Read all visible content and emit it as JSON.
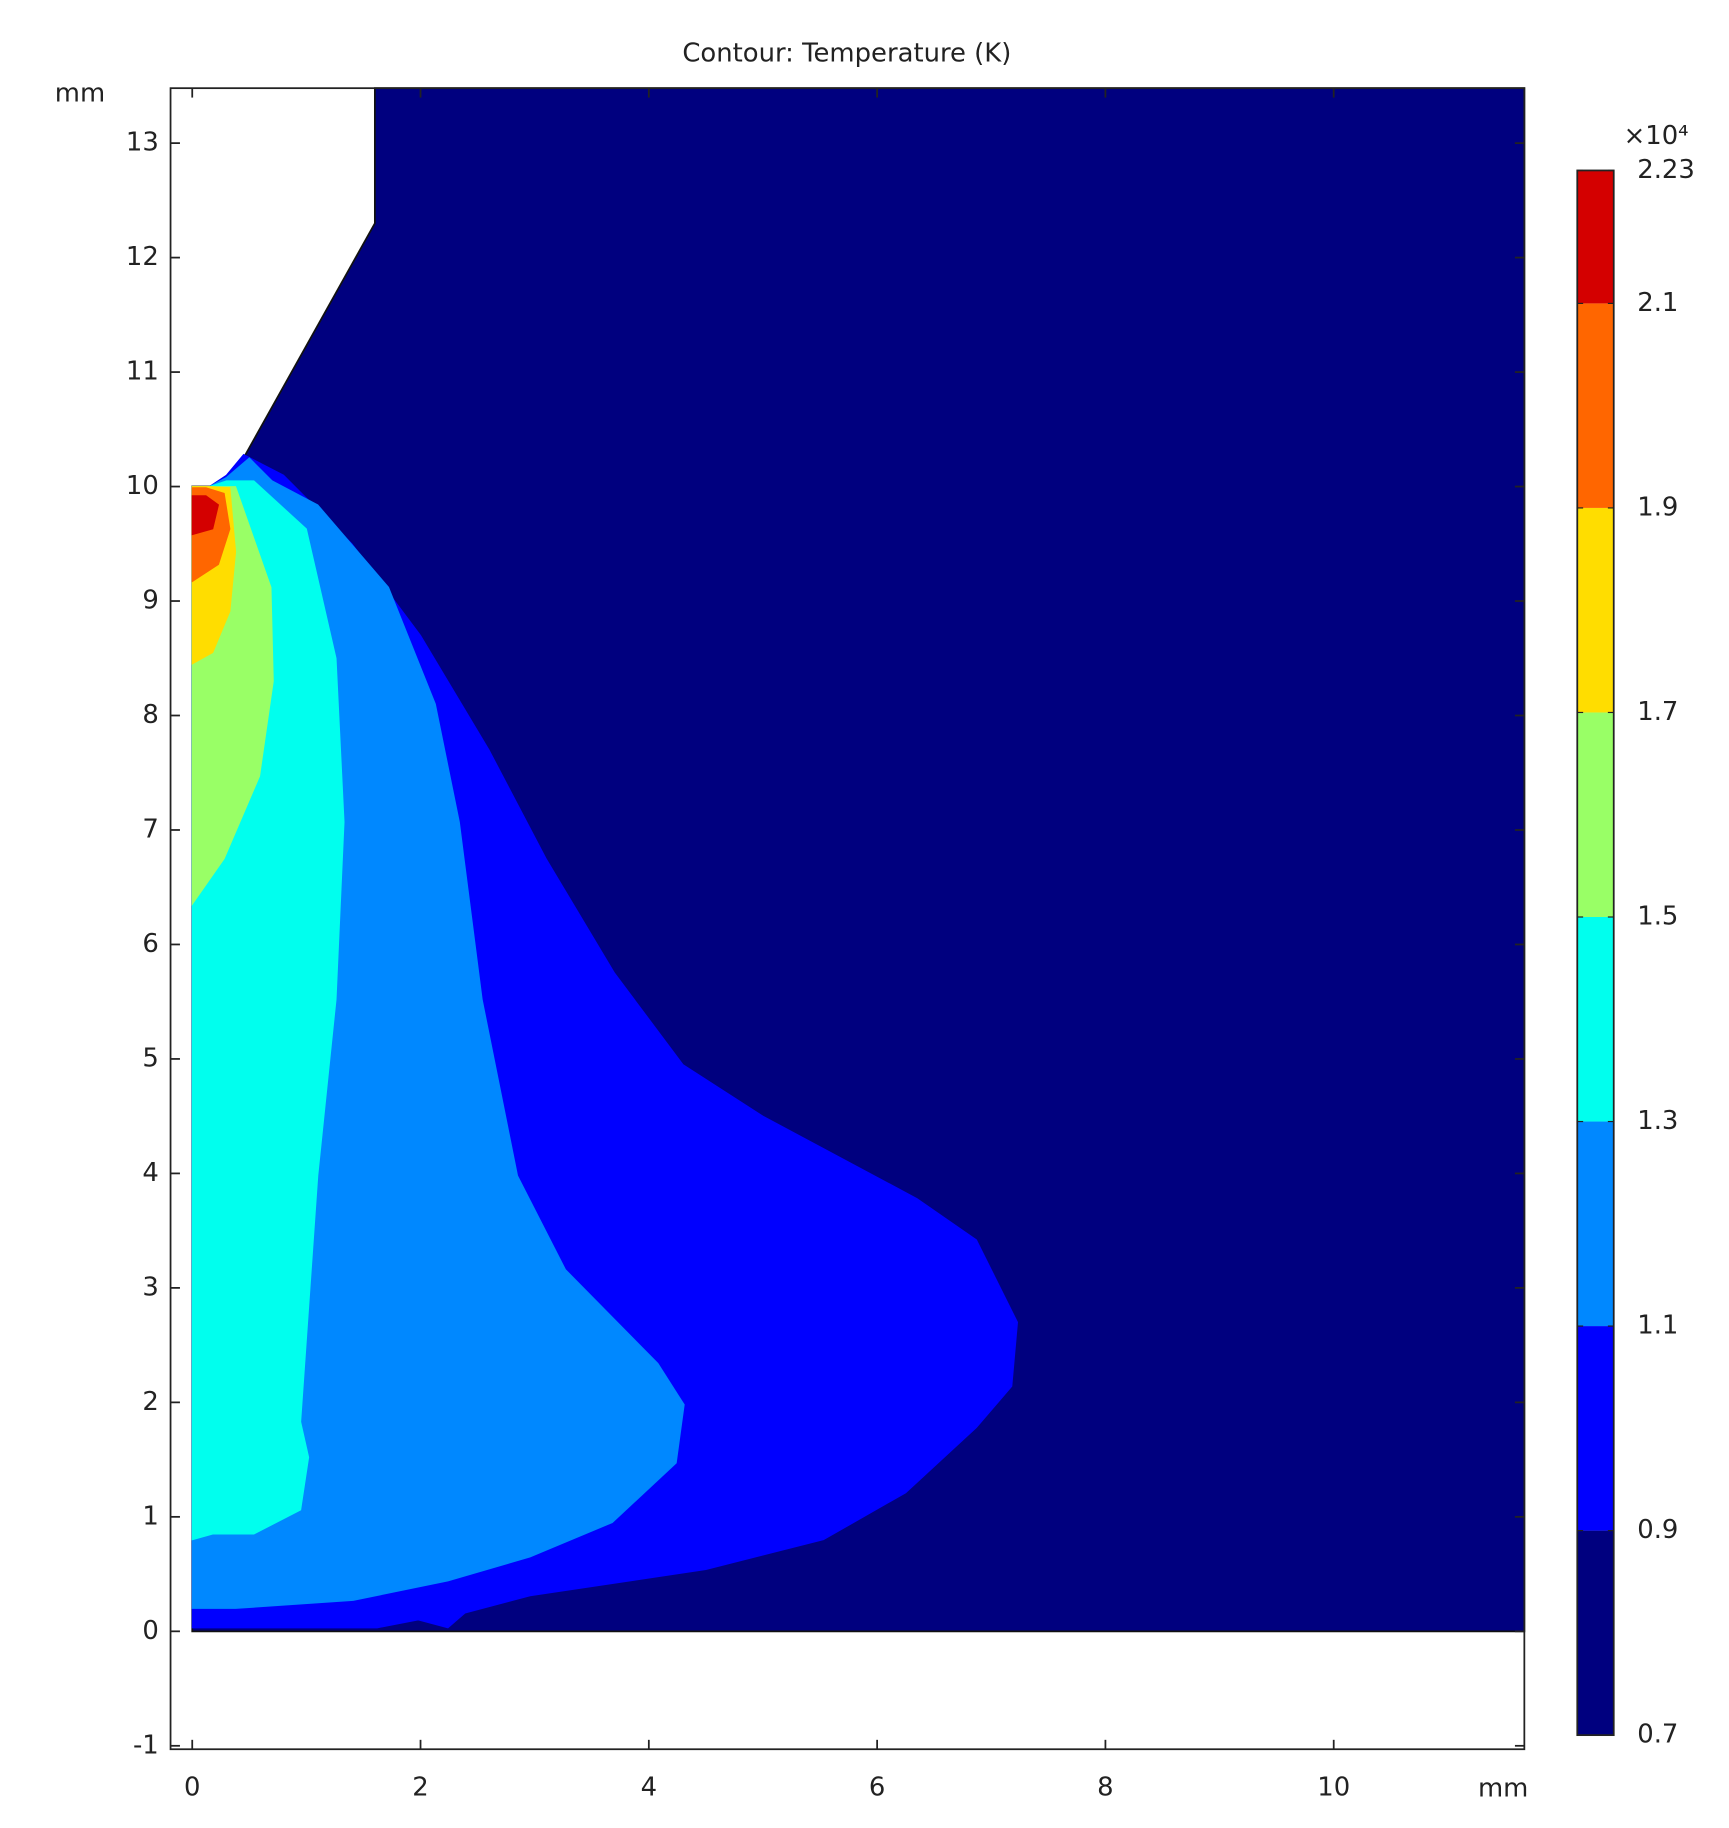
{
  "chart_data": {
    "type": "contour",
    "title": "Contour: Temperature (K)",
    "xlabel": "mm",
    "ylabel": "mm",
    "xlim": [
      -0.19,
      11.67
    ],
    "ylim": [
      -1.03,
      13.48
    ],
    "xticks": [
      0,
      2,
      4,
      6,
      8,
      10
    ],
    "yticks": [
      -1,
      0,
      1,
      2,
      3,
      4,
      5,
      6,
      7,
      8,
      9,
      10,
      11,
      12,
      13
    ],
    "colorbar_multiplier": "×10⁴",
    "levels": [
      0.7,
      0.9,
      1.1,
      1.3,
      1.5,
      1.7,
      1.9,
      2.1,
      2.23
    ],
    "colors": [
      "#00007f",
      "#0000ff",
      "#0088ff",
      "#00ffee",
      "#99ff66",
      "#ffdd00",
      "#ff6600",
      "#d40000"
    ],
    "regions": [
      {
        "x": [
          0,
          11.67,
          11.67,
          1.6,
          1.6,
          0.45,
          0.3,
          0.15,
          0
        ],
        "y": [
          0,
          0,
          13.48,
          13.48,
          12.3,
          10.25,
          10.05,
          10,
          10
        ]
      },
      {
        "x": [
          0,
          1.62,
          1.98,
          2.24,
          2.39,
          2.96,
          4.5,
          5.53,
          6.25,
          6.87,
          7.18,
          7.23,
          6.87,
          6.35,
          5.0,
          4.3,
          3.7,
          3.1,
          2.6,
          2.0,
          1.4,
          0.8,
          0.45,
          0.3,
          0.15,
          0
        ],
        "y": [
          0.03,
          0.03,
          0.1,
          0.03,
          0.16,
          0.31,
          0.54,
          0.8,
          1.21,
          1.78,
          2.14,
          2.7,
          3.42,
          3.78,
          4.5,
          4.95,
          5.75,
          6.75,
          7.7,
          8.7,
          9.5,
          10.1,
          10.28,
          10.1,
          10,
          10
        ]
      },
      {
        "x": [
          0,
          0.38,
          1.41,
          2.24,
          2.96,
          3.68,
          4.24,
          4.31,
          4.08,
          3.27,
          2.85,
          2.54,
          2.34,
          2.13,
          1.72,
          1.1,
          0.7,
          0.5,
          0.3,
          0.15,
          0
        ],
        "y": [
          0.2,
          0.2,
          0.27,
          0.44,
          0.65,
          0.95,
          1.47,
          1.98,
          2.34,
          3.16,
          3.98,
          5.52,
          7.07,
          8.1,
          9.12,
          9.84,
          10.05,
          10.25,
          10.08,
          10,
          10
        ]
      },
      {
        "x": [
          0,
          0.18,
          0.54,
          0.95,
          1.02,
          0.95,
          1.1,
          1.26,
          1.33,
          1.26,
          1.0,
          0.54,
          0.3,
          0.15,
          0
        ],
        "y": [
          0.8,
          0.85,
          0.85,
          1.06,
          1.52,
          1.83,
          3.98,
          5.52,
          7.07,
          8.5,
          9.63,
          10.05,
          10.05,
          10,
          10
        ]
      },
      {
        "x": [
          0,
          0.28,
          0.59,
          0.71,
          0.69,
          0.38,
          0.15,
          0
        ],
        "y": [
          6.35,
          6.75,
          7.47,
          8.3,
          9.12,
          10.0,
          10,
          10
        ]
      },
      {
        "x": [
          0,
          0.18,
          0.33,
          0.38,
          0.33,
          0.15,
          0
        ],
        "y": [
          8.45,
          8.55,
          8.91,
          9.43,
          9.99,
          10,
          10
        ]
      },
      {
        "x": [
          0,
          0.23,
          0.33,
          0.28,
          0.12,
          0
        ],
        "y": [
          9.17,
          9.32,
          9.63,
          9.94,
          9.99,
          9.99
        ]
      },
      {
        "x": [
          0,
          0.18,
          0.23,
          0.12,
          0
        ],
        "y": [
          9.58,
          9.63,
          9.84,
          9.92,
          9.92
        ]
      }
    ]
  }
}
